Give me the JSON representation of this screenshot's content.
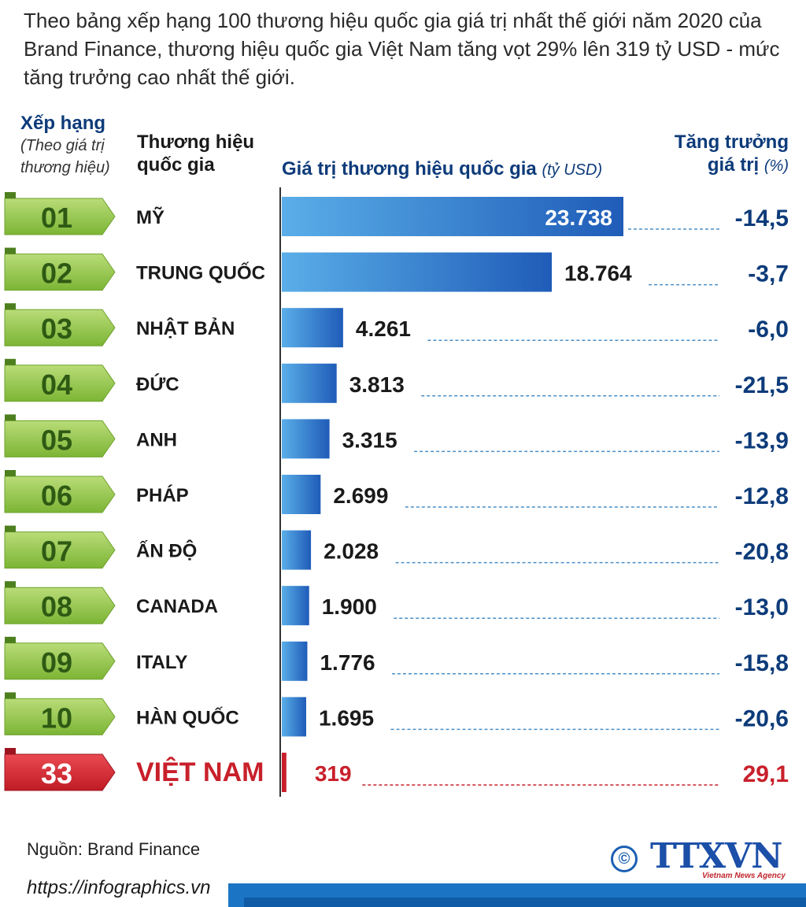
{
  "intro": "Theo bảng xếp hạng 100 thương hiệu quốc gia giá trị nhất thế giới năm 2020 của Brand Finance, thương hiệu quốc gia Việt Nam tăng vọt 29% lên 319 tỷ USD - mức tăng trưởng cao nhất thế giới.",
  "headers": {
    "rank_title": "Xếp hạng",
    "rank_sub": "(Theo giá trị thương hiệu)",
    "country_title": "Thương hiệu quốc gia",
    "value_title": "Giá trị thương hiệu quốc gia",
    "value_unit": "(tỷ USD)",
    "growth_title_1": "Tăng trưởng",
    "growth_title_2": "giá trị",
    "growth_unit": "(%)"
  },
  "colors": {
    "bar_light": "#5aaee8",
    "bar_dark": "#1f5cb8",
    "rank_green": "#8cc43f",
    "rank_dark_green": "#2e5a14",
    "highlight_red": "#c8202b",
    "navy": "#0d3b7a"
  },
  "chart_data": {
    "type": "bar",
    "orientation": "horizontal",
    "categories": [
      "MỸ",
      "TRUNG QUỐC",
      "NHẬT BẢN",
      "ĐỨC",
      "ANH",
      "PHÁP",
      "ẤN ĐỘ",
      "CANADA",
      "ITALY",
      "HÀN QUỐC",
      "VIỆT NAM"
    ],
    "ranks": [
      "01",
      "02",
      "03",
      "04",
      "05",
      "06",
      "07",
      "08",
      "09",
      "10",
      "33"
    ],
    "values": [
      23738,
      18764,
      4261,
      3813,
      3315,
      2699,
      2028,
      1900,
      1776,
      1695,
      319
    ],
    "value_labels": [
      "23.738",
      "18.764",
      "4.261",
      "3.813",
      "3.315",
      "2.699",
      "2.028",
      "1.900",
      "1.776",
      "1.695",
      "319"
    ],
    "growth_labels": [
      "-14,5",
      "-3,7",
      "-6,0",
      "-21,5",
      "-13,9",
      "-12,8",
      "-20,8",
      "-13,0",
      "-15,8",
      "-20,6",
      "29,1"
    ],
    "growth": [
      -14.5,
      -3.7,
      -6.0,
      -21.5,
      -13.9,
      -12.8,
      -20.8,
      -13.0,
      -15.8,
      -20.6,
      29.1
    ],
    "highlight_index": 10,
    "xlim": [
      0,
      23738
    ]
  },
  "source": "Nguồn: Brand Finance",
  "website": "https://infographics.vn",
  "copyright_symbol": "©",
  "logo_text": "TTXVN",
  "logo_tagline": "Vietnam News Agency"
}
